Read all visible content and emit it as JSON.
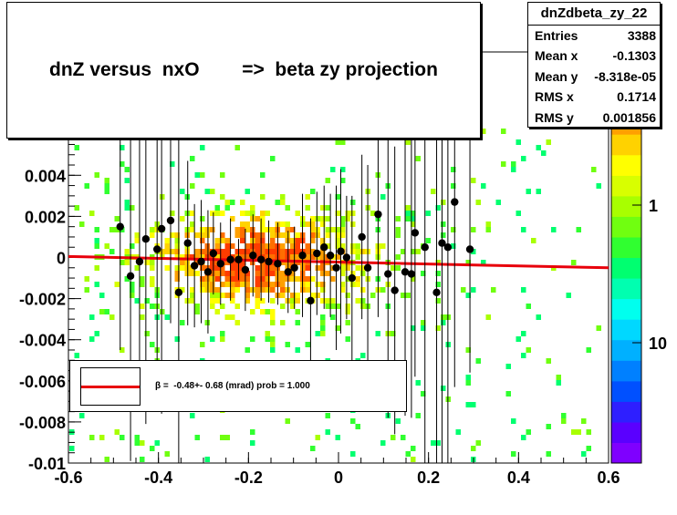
{
  "chart_data": {
    "type": "scatter",
    "title": "dnZ versus  nxO        =>  beta zy projection",
    "xlim": [
      -0.6,
      0.6
    ],
    "ylim": [
      -0.01,
      0.01
    ],
    "x_ticks": [
      "-0.6",
      "-0.4",
      "-0.2",
      "0",
      "0.2",
      "0.4",
      "0.6"
    ],
    "y_ticks": [
      "-0.01",
      "-0.008",
      "-0.006",
      "-0.004",
      "-0.002",
      "0",
      "0.002",
      "0.004"
    ],
    "palette_labels": [
      "1",
      "10"
    ],
    "stats": {
      "name": "dnZdbeta_zy_22",
      "rows": [
        {
          "key": "Entries",
          "value": "3388"
        },
        {
          "key": "Mean x",
          "value": "-0.1303"
        },
        {
          "key": "Mean y",
          "value": "-8.318e-05"
        },
        {
          "key": "RMS x",
          "value": "0.1714"
        },
        {
          "key": "RMS y",
          "value": "0.001856"
        }
      ]
    },
    "fit": {
      "legend": "β =  -0.48+- 0.68 (mrad) prob = 1.000",
      "line": [
        [
          -0.6,
          5e-05
        ],
        [
          0.6,
          -0.0005
        ]
      ],
      "color": "#e8000b"
    },
    "profile_points": [
      {
        "x": -0.485,
        "y": 0.0015,
        "err": 0.006
      },
      {
        "x": -0.462,
        "y": -0.0009,
        "err": 0.009
      },
      {
        "x": -0.442,
        "y": -0.0002,
        "err": 0.006
      },
      {
        "x": -0.428,
        "y": 0.0009,
        "err": 0.009
      },
      {
        "x": -0.403,
        "y": 0.0004,
        "err": 0.006
      },
      {
        "x": -0.393,
        "y": 0.0014,
        "err": 0.009
      },
      {
        "x": -0.373,
        "y": 0.0018,
        "err": 0.005
      },
      {
        "x": -0.355,
        "y": -0.0017,
        "err": 0.009
      },
      {
        "x": -0.335,
        "y": 0.0007,
        "err": 0.004
      },
      {
        "x": -0.32,
        "y": -0.0004,
        "err": 0.003
      },
      {
        "x": -0.305,
        "y": -0.0002,
        "err": 0.003
      },
      {
        "x": -0.29,
        "y": -0.0007,
        "err": 0.003
      },
      {
        "x": -0.278,
        "y": 0.0002,
        "err": 0.002
      },
      {
        "x": -0.262,
        "y": -0.0003,
        "err": 0.002
      },
      {
        "x": -0.24,
        "y": -0.0001,
        "err": 0.002
      },
      {
        "x": -0.222,
        "y": -0.0001,
        "err": 0.001
      },
      {
        "x": -0.207,
        "y": -0.0006,
        "err": 0.002
      },
      {
        "x": -0.19,
        "y": 0.0001,
        "err": 0.002
      },
      {
        "x": -0.172,
        "y": -0.0001,
        "err": 0.002
      },
      {
        "x": -0.155,
        "y": -0.0002,
        "err": 0.002
      },
      {
        "x": -0.135,
        "y": -0.0003,
        "err": 0.002
      },
      {
        "x": -0.112,
        "y": -0.0007,
        "err": 0.002
      },
      {
        "x": -0.098,
        "y": -0.0005,
        "err": 0.002
      },
      {
        "x": -0.08,
        "y": 0.0001,
        "err": 0.003
      },
      {
        "x": -0.062,
        "y": -0.0021,
        "err": 0.004
      },
      {
        "x": -0.048,
        "y": 0.0002,
        "err": 0.003
      },
      {
        "x": -0.032,
        "y": 0.0005,
        "err": 0.003
      },
      {
        "x": -0.018,
        "y": 0.0001,
        "err": 0.003
      },
      {
        "x": -0.005,
        "y": -0.0005,
        "err": 0.004
      },
      {
        "x": 0.005,
        "y": 0.0003,
        "err": 0.004
      },
      {
        "x": 0.018,
        "y": 0.0,
        "err": 0.003
      },
      {
        "x": 0.03,
        "y": -0.001,
        "err": 0.004
      },
      {
        "x": 0.052,
        "y": 0.001,
        "err": 0.004
      },
      {
        "x": 0.065,
        "y": -0.0005,
        "err": 0.005
      },
      {
        "x": 0.088,
        "y": 0.0021,
        "err": 0.005
      },
      {
        "x": 0.11,
        "y": -0.0008,
        "err": 0.007
      },
      {
        "x": 0.125,
        "y": -0.0016,
        "err": 0.007
      },
      {
        "x": 0.148,
        "y": -0.0007,
        "err": 0.007
      },
      {
        "x": 0.162,
        "y": -0.0008,
        "err": 0.007
      },
      {
        "x": 0.17,
        "y": 0.0012,
        "err": 0.007
      },
      {
        "x": 0.192,
        "y": 0.0005,
        "err": 0.011
      },
      {
        "x": 0.218,
        "y": -0.0017,
        "err": 0.011
      },
      {
        "x": 0.23,
        "y": 0.0007,
        "err": 0.011
      },
      {
        "x": 0.243,
        "y": 0.0005,
        "err": 0.011
      },
      {
        "x": 0.258,
        "y": 0.0027,
        "err": 0.009
      },
      {
        "x": 0.292,
        "y": 0.0004,
        "err": 0.006
      }
    ]
  },
  "colors": {
    "fit_line": "#e8000b",
    "markers": "#000000",
    "palette": [
      "#7f00ff",
      "#5a00ff",
      "#2e1fff",
      "#0050ff",
      "#0080ff",
      "#00b0ff",
      "#00d8ff",
      "#00ffee",
      "#00ffb0",
      "#00ff70",
      "#30ff30",
      "#70ff10",
      "#a8ff00",
      "#d8ff00",
      "#ffff00",
      "#ffd200",
      "#ffa000",
      "#ff6e00",
      "#ff3c00",
      "#ff0000"
    ]
  }
}
